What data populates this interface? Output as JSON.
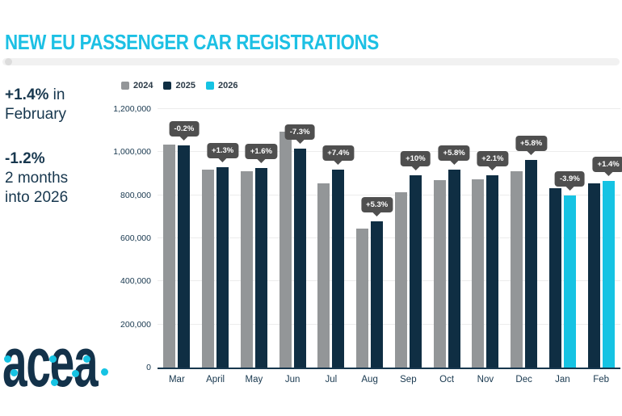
{
  "header": {
    "title": "NEW EU PASSENGER CAR REGISTRATIONS"
  },
  "stats": {
    "first": {
      "highlight": "+1.4%",
      "rest": " in",
      "line2": "February"
    },
    "second": {
      "highlight": "-1.2%",
      "line2": "2 months",
      "line3": "into 2026"
    }
  },
  "logo": {
    "text": "acea"
  },
  "colors": {
    "accent_cyan": "#1cc0e4",
    "bar_gray": "#939698",
    "bar_navy": "#0f2e43",
    "bar_cyan": "#16c3e3",
    "text_navy": "#17374e",
    "tooltip_bg": "#4f4f4f"
  },
  "chart_data": {
    "type": "bar",
    "title": "NEW EU PASSENGER CAR REGISTRATIONS",
    "categories": [
      "Mar",
      "April",
      "May",
      "Jun",
      "Jul",
      "Aug",
      "Sep",
      "Oct",
      "Nov",
      "Dec",
      "Jan",
      "Feb"
    ],
    "series": [
      {
        "name": "2024",
        "color": "#939698",
        "values": [
          1034000,
          918000,
          913000,
          1096000,
          855000,
          645000,
          812000,
          870000,
          873000,
          911000,
          null,
          null
        ]
      },
      {
        "name": "2025",
        "color": "#0f2e43",
        "values": [
          1032000,
          930000,
          928000,
          1016000,
          918000,
          680000,
          893000,
          920000,
          891000,
          964000,
          833000,
          854000
        ]
      },
      {
        "name": "2026",
        "color": "#16c3e3",
        "values": [
          null,
          null,
          null,
          null,
          null,
          null,
          null,
          null,
          null,
          null,
          800000,
          866000
        ]
      }
    ],
    "pct_labels": [
      "-0.2%",
      "+1.3%",
      "+1.6%",
      "-7.3%",
      "+7.4%",
      "+5.3%",
      "+10%",
      "+5.8%",
      "+2.1%",
      "+5.8%",
      "-3.9%",
      "+1.4%"
    ],
    "ylabel": "",
    "xlabel": "",
    "ylim": [
      0,
      1200000
    ],
    "ytick_step": 200000,
    "ytick_labels": [
      "0",
      "200,000",
      "400,000",
      "600,000",
      "800,000",
      "1,000,000",
      "1,200,000"
    ],
    "grid": "horizontal",
    "legend_position": "top-left"
  }
}
